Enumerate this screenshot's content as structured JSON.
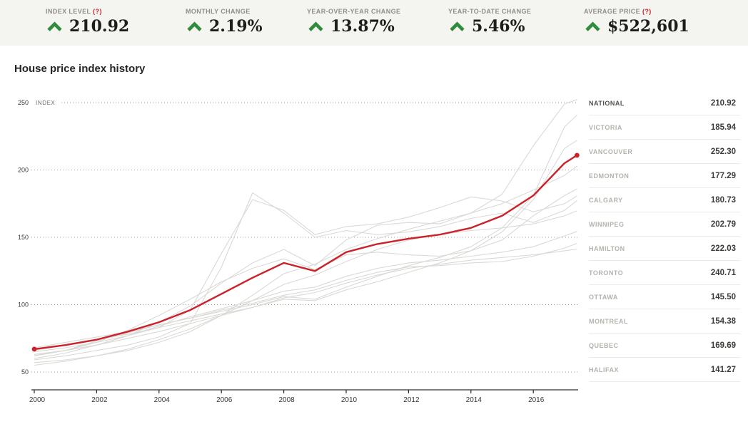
{
  "section_title": "House price index history",
  "stats": [
    {
      "label": "INDEX LEVEL",
      "help": "(?)",
      "value": "210.92"
    },
    {
      "label": "MONTHLY CHANGE",
      "value": "2.19%"
    },
    {
      "label": "YEAR-OVER-YEAR CHANGE",
      "value": "13.87%"
    },
    {
      "label": "YEAR-TO-DATE CHANGE",
      "value": "5.46%"
    },
    {
      "label": "AVERAGE PRICE",
      "help": "(?)",
      "value": "$522,601"
    }
  ],
  "legend": [
    {
      "name": "NATIONAL",
      "value": "210.92"
    },
    {
      "name": "VICTORIA",
      "value": "185.94"
    },
    {
      "name": "VANCOUVER",
      "value": "252.30"
    },
    {
      "name": "EDMONTON",
      "value": "177.29"
    },
    {
      "name": "CALGARY",
      "value": "180.73"
    },
    {
      "name": "WINNIPEG",
      "value": "202.79"
    },
    {
      "name": "HAMILTON",
      "value": "222.03"
    },
    {
      "name": "TORONTO",
      "value": "240.71"
    },
    {
      "name": "OTTAWA",
      "value": "145.50"
    },
    {
      "name": "MONTREAL",
      "value": "154.38"
    },
    {
      "name": "QUEBEC",
      "value": "169.69"
    },
    {
      "name": "HALIFAX",
      "value": "141.27"
    }
  ],
  "chart_data": {
    "type": "line",
    "title": "House price index history",
    "ylabel": "INDEX",
    "xlabel": "",
    "yticks": [
      50,
      100,
      150,
      200,
      250
    ],
    "xticks": [
      2000,
      2002,
      2004,
      2006,
      2008,
      2010,
      2012,
      2014,
      2016
    ],
    "ylim": [
      37,
      255
    ],
    "xlim": [
      2000,
      2017.6
    ],
    "grid": "dotted-horizontal",
    "legend_position": "right",
    "x": [
      2000,
      2001,
      2002,
      2003,
      2004,
      2005,
      2006,
      2007,
      2008,
      2009,
      2010,
      2011,
      2012,
      2013,
      2014,
      2015,
      2016,
      2017,
      2017.4
    ],
    "series": [
      {
        "name": "NATIONAL",
        "highlight": true,
        "values": [
          67,
          70,
          74,
          80,
          87,
          96,
          108,
          120,
          131,
          125,
          139,
          145,
          149,
          152,
          157,
          166,
          181,
          205,
          210.92
        ]
      },
      {
        "name": "VICTORIA",
        "values": [
          62,
          66,
          72,
          81,
          92,
          104,
          117,
          127,
          134,
          126,
          137,
          139,
          137,
          136,
          140,
          148,
          166,
          181,
          185.94
        ]
      },
      {
        "name": "VANCOUVER",
        "values": [
          63,
          66,
          70,
          77,
          87,
          99,
          116,
          131,
          141,
          129,
          148,
          159,
          161,
          160,
          168,
          182,
          218,
          249,
          252.3
        ]
      },
      {
        "name": "EDMONTON",
        "values": [
          59,
          62,
          66,
          70,
          76,
          86,
          128,
          183,
          168,
          150,
          155,
          152,
          154,
          158,
          164,
          168,
          161,
          170,
          177.29
        ]
      },
      {
        "name": "CALGARY",
        "values": [
          65,
          68,
          72,
          77,
          83,
          96,
          138,
          178,
          170,
          152,
          158,
          160,
          165,
          172,
          180,
          177,
          169,
          175,
          180.73
        ]
      },
      {
        "name": "WINNIPEG",
        "values": [
          57,
          59,
          62,
          66,
          72,
          80,
          92,
          107,
          123,
          130,
          141,
          149,
          156,
          162,
          168,
          175,
          185,
          196,
          202.79
        ]
      },
      {
        "name": "HAMILTON",
        "values": [
          66,
          70,
          74,
          78,
          83,
          88,
          93,
          98,
          104,
          103,
          111,
          117,
          124,
          131,
          140,
          154,
          178,
          216,
          222.03
        ]
      },
      {
        "name": "TORONTO",
        "values": [
          68,
          72,
          76,
          80,
          85,
          90,
          95,
          100,
          106,
          104,
          113,
          121,
          129,
          135,
          143,
          157,
          181,
          232,
          240.71
        ]
      },
      {
        "name": "OTTAWA",
        "values": [
          62,
          66,
          73,
          79,
          85,
          90,
          96,
          101,
          107,
          111,
          118,
          124,
          128,
          129,
          131,
          132,
          136,
          142,
          145.5
        ]
      },
      {
        "name": "MONTREAL",
        "values": [
          60,
          64,
          70,
          77,
          84,
          91,
          97,
          103,
          110,
          113,
          121,
          127,
          131,
          133,
          136,
          139,
          143,
          151,
          154.38
        ]
      },
      {
        "name": "QUEBEC",
        "values": [
          55,
          58,
          62,
          67,
          74,
          82,
          92,
          103,
          115,
          122,
          132,
          141,
          148,
          152,
          155,
          157,
          160,
          166,
          169.69
        ]
      },
      {
        "name": "HALIFAX",
        "values": [
          63,
          66,
          70,
          75,
          80,
          86,
          92,
          98,
          105,
          109,
          116,
          122,
          127,
          130,
          133,
          135,
          137,
          140,
          141.27
        ]
      }
    ],
    "colors": {
      "highlight": "#cc2128",
      "other": "#d9d9d6"
    }
  }
}
